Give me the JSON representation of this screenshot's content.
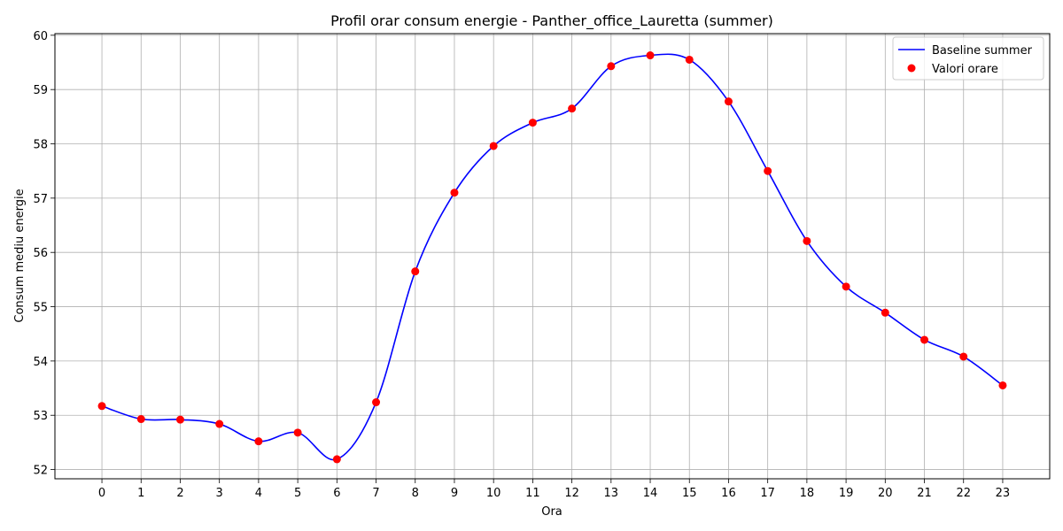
{
  "chart_data": {
    "type": "line",
    "title": "Profil orar consum energie - Panther_office_Lauretta (summer)",
    "xlabel": "Ora",
    "ylabel": "Consum mediu energie",
    "xlim": [
      -1.2,
      24.2
    ],
    "ylim": [
      51.83,
      60.03
    ],
    "xticks": [
      0,
      1,
      2,
      3,
      4,
      5,
      6,
      7,
      8,
      9,
      10,
      11,
      12,
      13,
      14,
      15,
      16,
      17,
      18,
      19,
      20,
      21,
      22,
      23
    ],
    "yticks": [
      52,
      53,
      54,
      55,
      56,
      57,
      58,
      59,
      60
    ],
    "grid": true,
    "legend_position": "top-right",
    "x": [
      0,
      1,
      2,
      3,
      4,
      5,
      6,
      7,
      8,
      9,
      10,
      11,
      12,
      13,
      14,
      15,
      16,
      17,
      18,
      19,
      20,
      21,
      22,
      23
    ],
    "series": [
      {
        "name": "Baseline summer",
        "kind": "line",
        "color": "#0000ff",
        "values": [
          53.17,
          52.93,
          52.92,
          52.84,
          52.52,
          52.68,
          52.19,
          53.24,
          55.65,
          57.1,
          57.96,
          58.39,
          58.65,
          59.43,
          59.63,
          59.55,
          58.78,
          57.5,
          56.21,
          55.37,
          54.89,
          54.39,
          54.08,
          53.55
        ]
      },
      {
        "name": "Valori orare",
        "kind": "scatter",
        "color": "#ff0000",
        "values": [
          53.17,
          52.93,
          52.92,
          52.84,
          52.52,
          52.68,
          52.19,
          53.24,
          55.65,
          57.1,
          57.96,
          58.39,
          58.65,
          59.43,
          59.63,
          59.55,
          58.78,
          57.5,
          56.21,
          55.37,
          54.89,
          54.39,
          54.08,
          53.55
        ]
      }
    ]
  }
}
